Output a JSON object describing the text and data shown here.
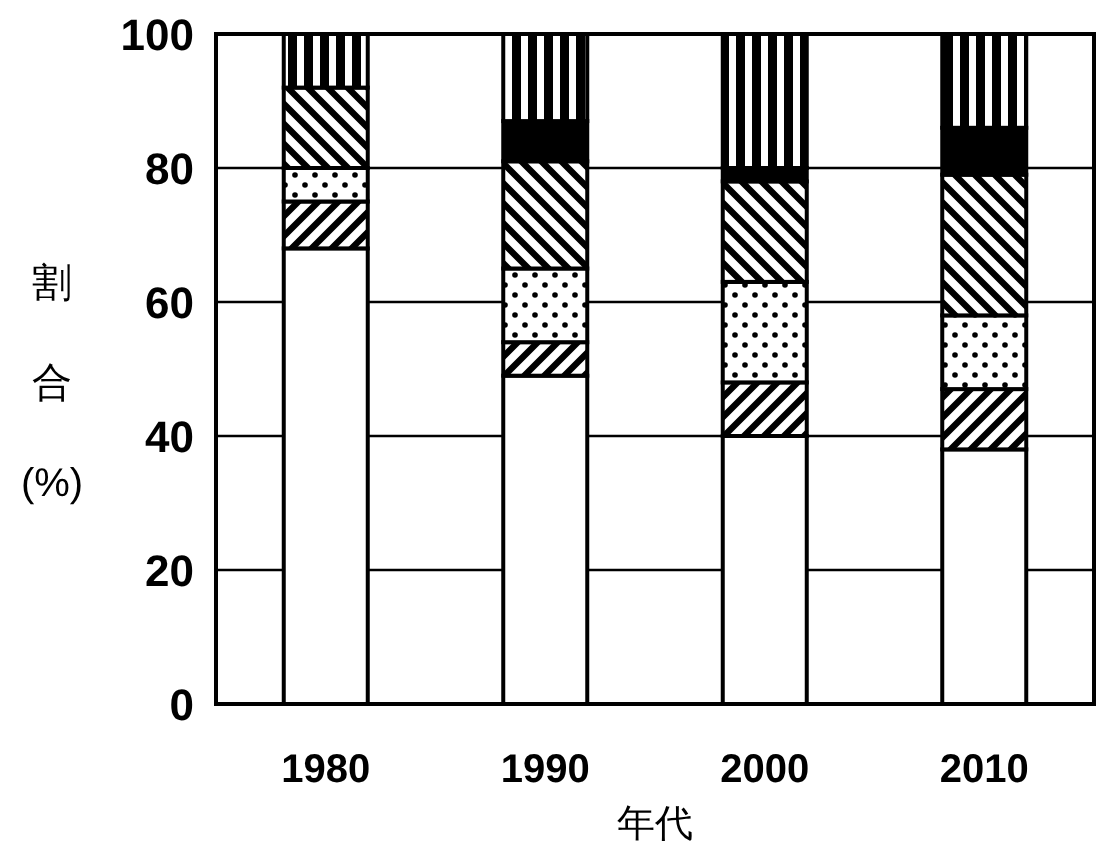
{
  "chart_data": {
    "type": "bar",
    "stacked": true,
    "ylabel": "割合(%)",
    "xlabel": "年代",
    "categories": [
      "1980",
      "1990",
      "2000",
      "2010"
    ],
    "series": [
      {
        "color": "#ffffff",
        "values": [
          68,
          49,
          40,
          38
        ]
      },
      {
        "color": "#000000",
        "values": [
          7,
          5,
          8,
          9
        ]
      },
      {
        "color": "#000000",
        "values": [
          5,
          11,
          15,
          11
        ]
      },
      {
        "color": "#000000",
        "values": [
          12,
          16,
          15,
          21
        ]
      },
      {
        "color": "#000000",
        "values": [
          0,
          6,
          2,
          7
        ]
      },
      {
        "color": "#000000",
        "values": [
          8,
          13,
          20,
          14
        ]
      }
    ],
    "ylim": [
      0,
      100
    ],
    "yticks": [
      0,
      20,
      40,
      60,
      80,
      100
    ],
    "grid": "y"
  }
}
